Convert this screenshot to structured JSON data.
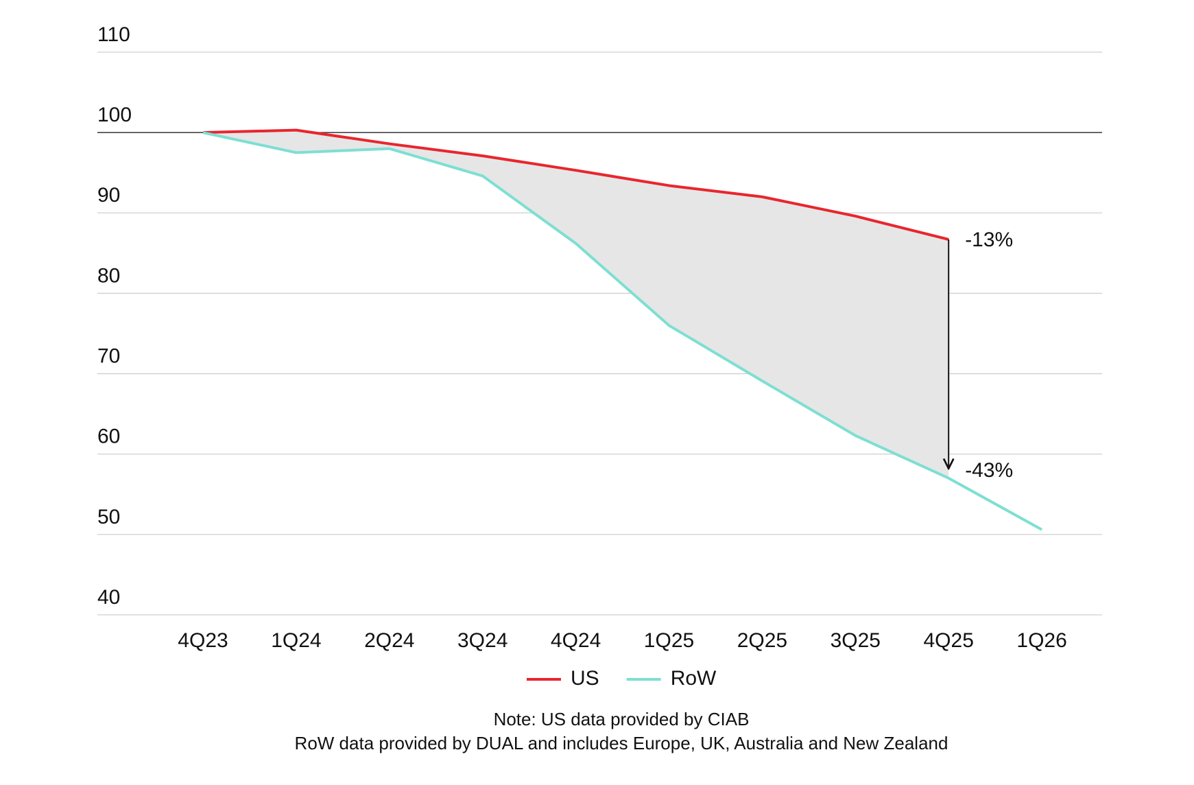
{
  "chart_data": {
    "type": "line",
    "categories": [
      "4Q23",
      "1Q24",
      "2Q24",
      "3Q24",
      "4Q24",
      "1Q25",
      "2Q25",
      "3Q25",
      "4Q25",
      "1Q26"
    ],
    "series": [
      {
        "name": "US",
        "color": "#e8262e",
        "values": [
          100,
          100.3,
          98.6,
          97.1,
          95.3,
          93.4,
          92.0,
          89.6,
          86.7,
          null
        ]
      },
      {
        "name": "RoW",
        "color": "#7ddfd2",
        "values": [
          100,
          97.5,
          98.0,
          94.6,
          86.2,
          76.0,
          69.1,
          62.3,
          57.0,
          50.6
        ]
      }
    ],
    "ylim": [
      40,
      110
    ],
    "yticks": [
      40,
      50,
      60,
      70,
      80,
      90,
      100,
      110
    ],
    "grid": true,
    "reference_line": 100,
    "fill_between": true,
    "annotations": [
      "-13%",
      "-43%"
    ],
    "notes": [
      "Note: US data provided by CIAB",
      "RoW data provided by DUAL and includes Europe, UK, Australia and New Zealand"
    ]
  }
}
